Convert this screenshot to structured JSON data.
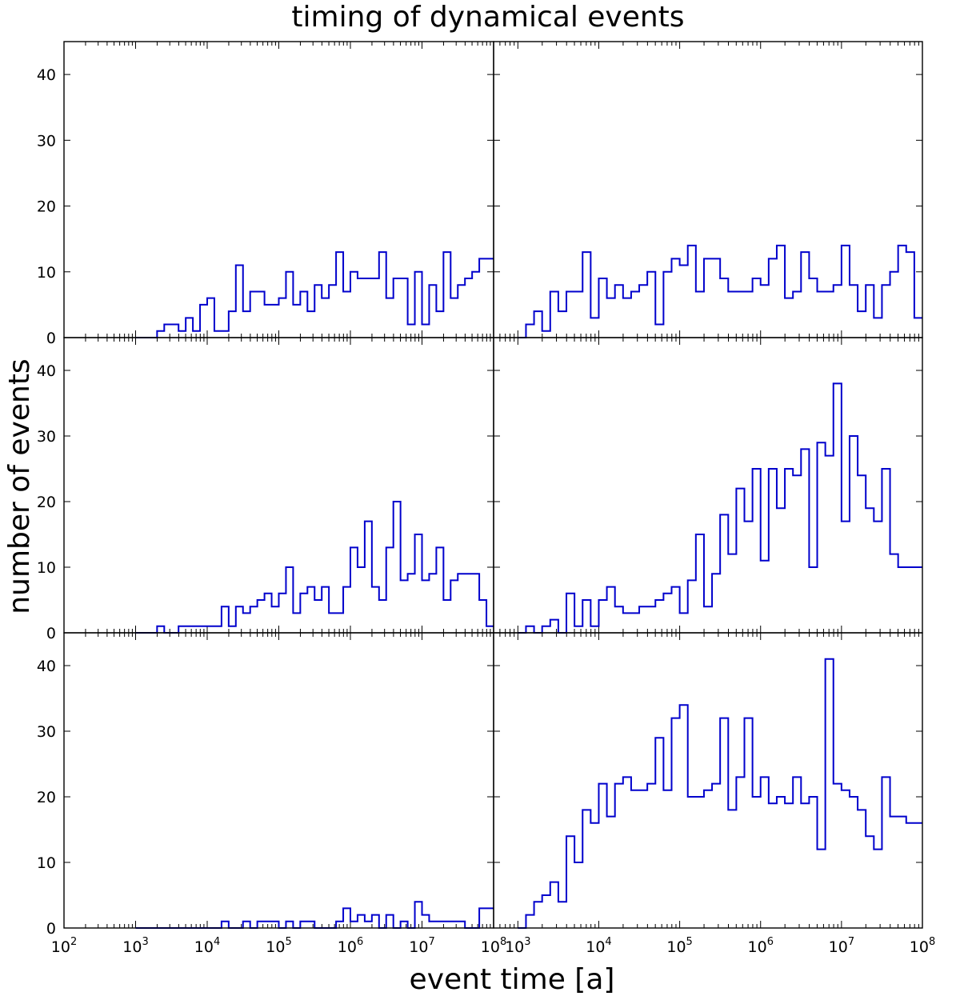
{
  "chart_data": {
    "type": "histogram-grid",
    "title": "timing of dynamical events",
    "xlabel": "event time [a]",
    "ylabel": "number of events",
    "x_scale": "log",
    "xlim": [
      100,
      100000000
    ],
    "ylim": [
      0,
      45
    ],
    "y_ticks": [
      0,
      10,
      20,
      30,
      40
    ],
    "x_ticks_left": [
      "10^2",
      "10^3",
      "10^4",
      "10^5",
      "10^6",
      "10^7",
      "10^8"
    ],
    "x_ticks_right": [
      "10^3",
      "10^4",
      "10^5",
      "10^6",
      "10^7",
      "10^8"
    ],
    "line_color": "#0000cc",
    "bin_edges_log10": [
      3.0,
      3.1,
      3.2,
      3.3,
      3.4,
      3.5,
      3.6,
      3.7,
      3.8,
      3.9,
      4.0,
      4.1,
      4.2,
      4.3,
      4.4,
      4.5,
      4.6,
      4.7,
      4.8,
      4.9,
      5.0,
      5.1,
      5.2,
      5.3,
      5.4,
      5.5,
      5.6,
      5.7,
      5.8,
      5.9,
      6.0,
      6.1,
      6.2,
      6.3,
      6.4,
      6.5,
      6.6,
      6.7,
      6.8,
      6.9,
      7.0,
      7.1,
      7.2,
      7.3,
      7.4,
      7.5,
      7.6,
      7.7,
      7.8,
      7.9,
      8.0
    ],
    "panels": [
      {
        "row": 0,
        "col": 0,
        "counts": [
          0,
          0,
          0,
          1,
          2,
          2,
          1,
          3,
          1,
          5,
          6,
          1,
          1,
          4,
          11,
          4,
          7,
          7,
          5,
          5,
          6,
          10,
          5,
          7,
          4,
          8,
          6,
          8,
          13,
          7,
          10,
          9,
          9,
          9,
          13,
          6,
          9,
          9,
          2,
          10,
          2,
          8,
          4,
          13,
          6,
          8,
          9,
          10,
          12,
          12
        ]
      },
      {
        "row": 0,
        "col": 1,
        "counts": [
          0,
          2,
          4,
          1,
          7,
          4,
          7,
          7,
          13,
          3,
          9,
          6,
          8,
          6,
          7,
          8,
          10,
          2,
          10,
          12,
          11,
          14,
          7,
          12,
          12,
          9,
          7,
          7,
          7,
          9,
          8,
          12,
          14,
          6,
          7,
          13,
          9,
          7,
          7,
          8,
          14,
          8,
          4,
          8,
          3,
          8,
          10,
          14,
          13,
          3
        ]
      },
      {
        "row": 1,
        "col": 0,
        "counts": [
          0,
          0,
          0,
          1,
          0,
          0,
          1,
          1,
          1,
          1,
          1,
          1,
          4,
          1,
          4,
          3,
          4,
          5,
          6,
          4,
          6,
          10,
          3,
          6,
          7,
          5,
          7,
          3,
          3,
          7,
          13,
          10,
          17,
          7,
          5,
          13,
          20,
          8,
          9,
          15,
          8,
          9,
          13,
          5,
          8,
          9,
          9,
          9,
          5,
          1
        ]
      },
      {
        "row": 1,
        "col": 1,
        "counts": [
          0,
          1,
          0,
          1,
          2,
          0,
          6,
          1,
          5,
          1,
          5,
          7,
          4,
          3,
          3,
          4,
          4,
          5,
          6,
          7,
          3,
          8,
          15,
          4,
          9,
          18,
          12,
          22,
          17,
          25,
          11,
          25,
          19,
          25,
          24,
          28,
          10,
          29,
          27,
          38,
          17,
          30,
          24,
          19,
          17,
          25,
          12,
          10,
          10,
          10
        ]
      },
      {
        "row": 2,
        "col": 0,
        "counts": [
          0,
          0,
          0,
          0,
          0,
          0,
          0,
          0,
          0,
          0,
          0,
          0,
          1,
          0,
          0,
          1,
          0,
          1,
          1,
          1,
          0,
          1,
          0,
          1,
          1,
          0,
          0,
          0,
          1,
          3,
          1,
          2,
          1,
          2,
          0,
          2,
          0,
          1,
          0,
          4,
          2,
          1,
          1,
          1,
          1,
          1,
          0,
          0,
          3,
          3
        ]
      },
      {
        "row": 2,
        "col": 1,
        "counts": [
          0,
          2,
          4,
          5,
          7,
          4,
          14,
          10,
          18,
          16,
          22,
          17,
          22,
          23,
          21,
          21,
          22,
          29,
          21,
          32,
          34,
          20,
          20,
          21,
          22,
          32,
          18,
          23,
          32,
          20,
          23,
          19,
          20,
          19,
          23,
          19,
          20,
          12,
          41,
          22,
          21,
          20,
          18,
          14,
          12,
          23,
          17,
          17,
          16,
          16
        ]
      }
    ]
  }
}
